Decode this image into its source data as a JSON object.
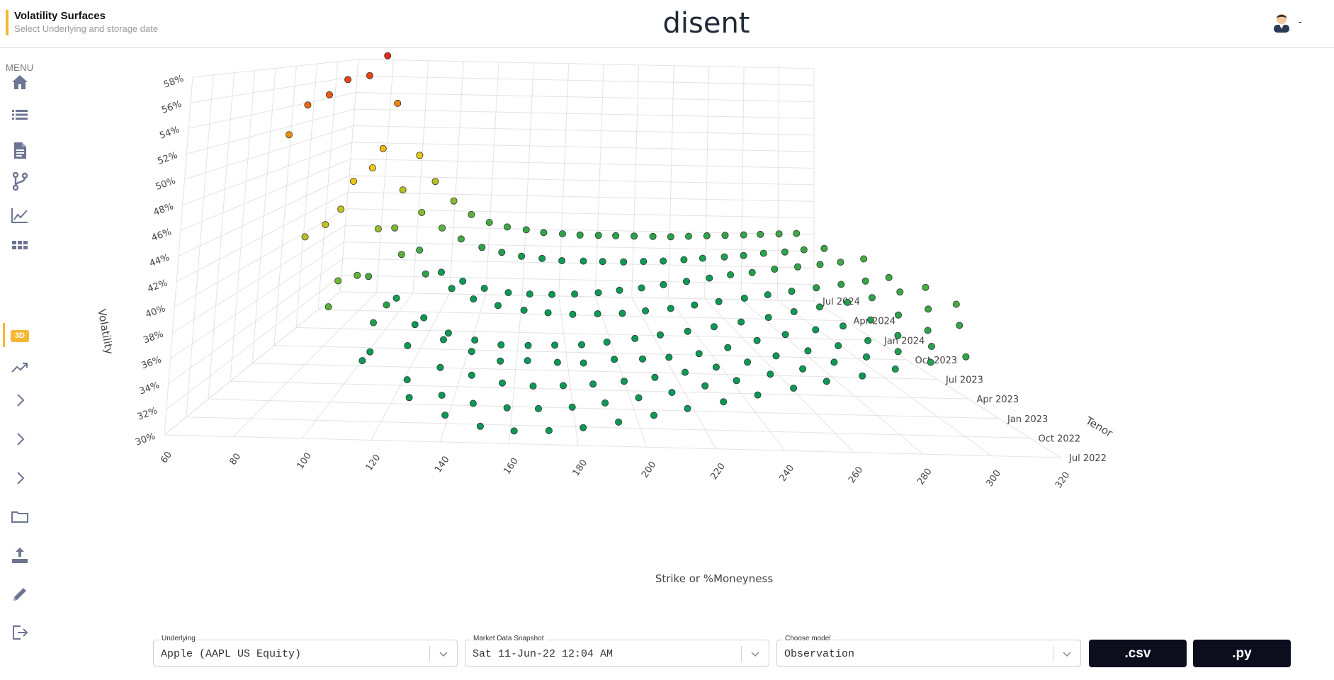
{
  "header": {
    "title": "Volatility Surfaces",
    "subtitle": "Select Underlying and storage date",
    "brand": "disent",
    "user_name": "-"
  },
  "sidebar": {
    "menu_label": "MENU",
    "items": [
      {
        "icon": "home-icon"
      },
      {
        "icon": "list-icon"
      },
      {
        "icon": "document-icon"
      },
      {
        "icon": "branch-icon"
      },
      {
        "icon": "line-chart-icon"
      },
      {
        "icon": "grid-icon"
      },
      {
        "icon": "3d-icon",
        "label": "3D",
        "active": true
      },
      {
        "icon": "trend-up-icon"
      },
      {
        "icon": "chevron-right-icon"
      },
      {
        "icon": "chevron-right-icon"
      },
      {
        "icon": "chevron-right-icon"
      },
      {
        "icon": "folder-icon"
      },
      {
        "icon": "upload-icon"
      },
      {
        "icon": "pencil-icon"
      },
      {
        "icon": "logout-icon"
      }
    ],
    "accent": "#f5b731"
  },
  "controls": {
    "underlying": {
      "label": "Underlying",
      "value": "Apple (AAPL US Equity)"
    },
    "snapshot": {
      "label": "Market Data Snapshot",
      "value": "Sat 11-Jun-22 12:04 AM"
    },
    "model": {
      "label": "Choose model",
      "value": "Observation"
    },
    "csv_label": ".csv",
    "py_label": ".py"
  },
  "chart_data": {
    "type": "scatter3d",
    "x_axis": {
      "title": "Strike or %Moneyness",
      "ticks": [
        "60",
        "80",
        "100",
        "120",
        "140",
        "160",
        "180",
        "200",
        "220",
        "240",
        "260",
        "280",
        "300",
        "320"
      ]
    },
    "y_axis": {
      "title": "Tenor",
      "ticks": [
        "Jul 2022",
        "Oct 2022",
        "Jan 2023",
        "Apr 2023",
        "Jul 2023",
        "Oct 2023",
        "Jan 2024",
        "Apr 2024",
        "Jul 2024"
      ]
    },
    "z_axis": {
      "title": "Volatility",
      "ticks": [
        "30%",
        "32%",
        "34%",
        "36%",
        "38%",
        "40%",
        "42%",
        "44%",
        "46%",
        "48%",
        "50%",
        "52%",
        "54%",
        "56%",
        "58%"
      ]
    },
    "colorscale": [
      "#0a9a55",
      "#8dbd2c",
      "#f2c712",
      "#ef8a10",
      "#e62b14"
    ],
    "points": [
      [
        73.7,
        "Jul 2023",
        54.6
      ],
      [
        89.5,
        "Jul 2023",
        44.8
      ],
      [
        101.9,
        "Jul 2023",
        38.5
      ],
      [
        113.1,
        "Jul 2023",
        36.5
      ],
      [
        124,
        "Jul 2023",
        34.7
      ],
      [
        133.7,
        "Jul 2023",
        33.3
      ],
      [
        143.9,
        "Jul 2023",
        32.7
      ],
      [
        154,
        "Jul 2023",
        32.3
      ],
      [
        164.3,
        "Jul 2023",
        32.3
      ],
      [
        174.4,
        "Jul 2023",
        32.4
      ],
      [
        184.6,
        "Jul 2023",
        32.5
      ],
      [
        194.2,
        "Jul 2023",
        32.8
      ],
      [
        204.8,
        "Jul 2023",
        33.2
      ],
      [
        214.4,
        "Jul 2023",
        33.6
      ],
      [
        224.8,
        "Jul 2023",
        34
      ],
      [
        234.8,
        "Jul 2023",
        34.5
      ],
      [
        245.1,
        "Jul 2023",
        35
      ],
      [
        255.5,
        "Jul 2023",
        35.5
      ],
      [
        265.2,
        "Jul 2023",
        36.1
      ],
      [
        275,
        "Jul 2023",
        36.6
      ],
      [
        285.6,
        "Jul 2023",
        37.1
      ],
      [
        295,
        "Jul 2023",
        37.6
      ],
      [
        305.7,
        "Jul 2023",
        38.2
      ],
      [
        315.5,
        "Jul 2023",
        38.7
      ],
      [
        74.2,
        "Apr 2023",
        52.3
      ],
      [
        89.6,
        "Apr 2023",
        44.3
      ],
      [
        102.2,
        "Apr 2023",
        39.8
      ],
      [
        113.3,
        "Apr 2023",
        37.2
      ],
      [
        123.8,
        "Apr 2023",
        35.5
      ],
      [
        134.2,
        "Apr 2023",
        34.2
      ],
      [
        144.4,
        "Apr 2023",
        33.2
      ],
      [
        154.7,
        "Apr 2023",
        32.4
      ],
      [
        164.3,
        "Apr 2023",
        32.5
      ],
      [
        174.9,
        "Apr 2023",
        32.4
      ],
      [
        184.1,
        "Apr 2023",
        32.4
      ],
      [
        194.9,
        "Apr 2023",
        32.8
      ],
      [
        204.9,
        "Apr 2023",
        32.9
      ],
      [
        214.2,
        "Apr 2023",
        33.1
      ],
      [
        224.8,
        "Apr 2023",
        33.5
      ],
      [
        234.9,
        "Apr 2023",
        34.1
      ],
      [
        245.2,
        "Apr 2023",
        34.8
      ],
      [
        255.2,
        "Apr 2023",
        35.4
      ],
      [
        265.9,
        "Apr 2023",
        35.9
      ],
      [
        275.6,
        "Apr 2023",
        36.3
      ],
      [
        285.4,
        "Apr 2023",
        36.9
      ],
      [
        295.2,
        "Apr 2023",
        37.4
      ],
      [
        305.8,
        "Apr 2023",
        38
      ],
      [
        315.8,
        "Apr 2023",
        38.5
      ],
      [
        74.9,
        "Jan 2024",
        56.4
      ],
      [
        89.2,
        "Jan 2024",
        47.1
      ],
      [
        101.2,
        "Jan 2024",
        40.8
      ],
      [
        113.1,
        "Jan 2024",
        38.5
      ],
      [
        123.6,
        "Jan 2024",
        36.2
      ],
      [
        133.5,
        "Jan 2024",
        35.3
      ],
      [
        143.4,
        "Jan 2024",
        34.6
      ],
      [
        154.3,
        "Jan 2024",
        34.2
      ],
      [
        164,
        "Jan 2024",
        34.1
      ],
      [
        174,
        "Jan 2024",
        34.1
      ],
      [
        184.2,
        "Jan 2024",
        34.2
      ],
      [
        194.9,
        "Jan 2024",
        34.4
      ],
      [
        204.4,
        "Jan 2024",
        34.7
      ],
      [
        214.3,
        "Jan 2024",
        35
      ],
      [
        224.1,
        "Jan 2024",
        35.4
      ],
      [
        234.5,
        "Jan 2024",
        35.8
      ],
      [
        244.8,
        "Jan 2024",
        36.2
      ],
      [
        254.3,
        "Jan 2024",
        36.6
      ],
      [
        264.1,
        "Jan 2024",
        36.9
      ],
      [
        274.2,
        "Jan 2024",
        37.3
      ],
      [
        284.7,
        "Jan 2024",
        37.6
      ],
      [
        294.8,
        "Jan 2024",
        37.9
      ],
      [
        304.1,
        "Jan 2024",
        38.2
      ],
      [
        314.6,
        "Jan 2024",
        38.6
      ],
      [
        76.5,
        "Jul 2024",
        58.5
      ],
      [
        84.1,
        "Jul 2024",
        52.8
      ],
      [
        98.6,
        "Jul 2024",
        46.6
      ],
      [
        108.3,
        "Jul 2024",
        43.5
      ],
      [
        119.3,
        "Jul 2024",
        41.2
      ],
      [
        129.5,
        "Jul 2024",
        39.6
      ],
      [
        139.7,
        "Jul 2024",
        38.7
      ],
      [
        149.8,
        "Jul 2024",
        38.2
      ],
      [
        160.4,
        "Jul 2024",
        37.9
      ],
      [
        170.1,
        "Jul 2024",
        37.6
      ],
      [
        180.6,
        "Jul 2024",
        37.5
      ],
      [
        190.3,
        "Jul 2024",
        37.4
      ],
      [
        200.5,
        "Jul 2024",
        37.4
      ],
      [
        210.1,
        "Jul 2024",
        37.4
      ],
      [
        220.3,
        "Jul 2024",
        37.4
      ],
      [
        230.7,
        "Jul 2024",
        37.4
      ],
      [
        240.6,
        "Jul 2024",
        37.4
      ],
      [
        250.5,
        "Jul 2024",
        37.5
      ],
      [
        260.6,
        "Jul 2024",
        37.6
      ],
      [
        270.7,
        "Jul 2024",
        37.7
      ],
      [
        281,
        "Jul 2024",
        37.8
      ],
      [
        290.2,
        "Jul 2024",
        37.9
      ],
      [
        300.6,
        "Jul 2024",
        38
      ],
      [
        310.3,
        "Jul 2024",
        38.1
      ],
      [
        76.9,
        "Apr 2024",
        56.5
      ],
      [
        86.4,
        "Apr 2024",
        48.3
      ],
      [
        97.8,
        "Apr 2024",
        43.7
      ],
      [
        108,
        "Apr 2024",
        41.2
      ],
      [
        118.7,
        "Apr 2024",
        39.5
      ],
      [
        128.5,
        "Apr 2024",
        38.3
      ],
      [
        139.1,
        "Apr 2024",
        37.4
      ],
      [
        149.1,
        "Apr 2024",
        36.9
      ],
      [
        159,
        "Apr 2024",
        36.5
      ],
      [
        169.3,
        "Apr 2024",
        36.3
      ],
      [
        179.2,
        "Apr 2024",
        36.1
      ],
      [
        189.9,
        "Apr 2024",
        36.1
      ],
      [
        199.5,
        "Apr 2024",
        36.1
      ],
      [
        209.9,
        "Apr 2024",
        36.1
      ],
      [
        219.8,
        "Apr 2024",
        36.2
      ],
      [
        229.6,
        "Apr 2024",
        36.3
      ],
      [
        239.9,
        "Apr 2024",
        36.5
      ],
      [
        249.2,
        "Apr 2024",
        36.7
      ],
      [
        260,
        "Apr 2024",
        36.9
      ],
      [
        269.5,
        "Apr 2024",
        37.1
      ],
      [
        279.5,
        "Apr 2024",
        37.4
      ],
      [
        290.1,
        "Apr 2024",
        37.6
      ],
      [
        299.6,
        "Apr 2024",
        37.9
      ],
      [
        309.7,
        "Apr 2024",
        38.1
      ],
      [
        75,
        "Oct 2023",
        55.2
      ],
      [
        87.8,
        "Oct 2023",
        46.6
      ],
      [
        99.5,
        "Oct 2023",
        41.9
      ],
      [
        109.9,
        "Oct 2023",
        39.4
      ],
      [
        120.4,
        "Oct 2023",
        37.5
      ],
      [
        131.6,
        "Oct 2023",
        36.1
      ],
      [
        140.8,
        "Oct 2023",
        35.1
      ],
      [
        151.1,
        "Oct 2023",
        34.5
      ],
      [
        161.9,
        "Oct 2023",
        34.1
      ],
      [
        171.9,
        "Oct 2023",
        33.9
      ],
      [
        182.1,
        "Oct 2023",
        33.8
      ],
      [
        192.4,
        "Oct 2023",
        33.9
      ],
      [
        202.6,
        "Oct 2023",
        34
      ],
      [
        212.1,
        "Oct 2023",
        34.3
      ],
      [
        222.5,
        "Oct 2023",
        34.6
      ],
      [
        232.3,
        "Oct 2023",
        35
      ],
      [
        242.3,
        "Oct 2023",
        35.4
      ],
      [
        252.9,
        "Oct 2023",
        35.8
      ],
      [
        262.5,
        "Oct 2023",
        36.2
      ],
      [
        272.4,
        "Oct 2023",
        36.6
      ],
      [
        282.6,
        "Oct 2023",
        37
      ],
      [
        292.9,
        "Oct 2023",
        37.4
      ],
      [
        303,
        "Oct 2023",
        37.8
      ],
      [
        312.7,
        "Oct 2023",
        38.2
      ],
      [
        88,
        "Jan 2023",
        44.1
      ],
      [
        100,
        "Jan 2023",
        40.4
      ],
      [
        112.6,
        "Jan 2023",
        36.9
      ],
      [
        124.4,
        "Jan 2023",
        35
      ],
      [
        135.6,
        "Jan 2023",
        33.2
      ],
      [
        146.1,
        "Jan 2023",
        32.6
      ],
      [
        156.3,
        "Jan 2023",
        32
      ],
      [
        166.5,
        "Jan 2023",
        31.8
      ],
      [
        176.4,
        "Jan 2023",
        31.9
      ],
      [
        186.2,
        "Jan 2023",
        32.1
      ],
      [
        196.4,
        "Jan 2023",
        32.4
      ],
      [
        206.5,
        "Jan 2023",
        32.8
      ],
      [
        216.4,
        "Jan 2023",
        33.3
      ],
      [
        226.6,
        "Jan 2023",
        33.8
      ],
      [
        236.9,
        "Jan 2023",
        34.3
      ],
      [
        246.3,
        "Jan 2023",
        34.9
      ],
      [
        256.8,
        "Jan 2023",
        35.4
      ],
      [
        266.8,
        "Jan 2023",
        35.9
      ],
      [
        276.6,
        "Jan 2023",
        36.4
      ],
      [
        286.5,
        "Jan 2023",
        36.9
      ],
      [
        296.4,
        "Jan 2023",
        37.4
      ],
      [
        306.9,
        "Jan 2023",
        37.9
      ],
      [
        101.5,
        "Oct 2022",
        39.3
      ],
      [
        115.3,
        "Oct 2022",
        35.7
      ],
      [
        127.3,
        "Oct 2022",
        33.5
      ],
      [
        138.3,
        "Oct 2022",
        32.3
      ],
      [
        148.1,
        "Oct 2022",
        31.7
      ],
      [
        158.6,
        "Oct 2022",
        31.4
      ],
      [
        168.3,
        "Oct 2022",
        31.4
      ],
      [
        178.7,
        "Oct 2022",
        31.6
      ],
      [
        188.8,
        "Oct 2022",
        32
      ],
      [
        199.1,
        "Oct 2022",
        32.5
      ],
      [
        209.3,
        "Oct 2022",
        33
      ],
      [
        219.5,
        "Oct 2022",
        33.6
      ],
      [
        229.2,
        "Oct 2022",
        34.1
      ],
      [
        239.6,
        "Oct 2022",
        34.7
      ],
      [
        249.6,
        "Oct 2022",
        35.2
      ],
      [
        259.3,
        "Oct 2022",
        35.8
      ],
      [
        269.3,
        "Oct 2022",
        36.3
      ],
      [
        279.1,
        "Oct 2022",
        36.8
      ],
      [
        289.5,
        "Oct 2022",
        37.3
      ],
      [
        116,
        "Jul 2022",
        36.2
      ],
      [
        130.3,
        "Jul 2022",
        33.4
      ],
      [
        141,
        "Jul 2022",
        32.1
      ],
      [
        151.4,
        "Jul 2022",
        31.3
      ],
      [
        161.3,
        "Jul 2022",
        31
      ],
      [
        171.4,
        "Jul 2022",
        31.1
      ],
      [
        181.3,
        "Jul 2022",
        31.4
      ],
      [
        191.5,
        "Jul 2022",
        31.9
      ],
      [
        201.7,
        "Jul 2022",
        32.5
      ],
      [
        211.4,
        "Jul 2022",
        33.1
      ],
      [
        221.8,
        "Jul 2022",
        33.7
      ],
      [
        231.7,
        "Jul 2022",
        34.3
      ],
      [
        242.1,
        "Jul 2022",
        34.9
      ],
      [
        251.7,
        "Jul 2022",
        35.5
      ],
      [
        262.1,
        "Jul 2022",
        36
      ],
      [
        271.7,
        "Jul 2022",
        36.6
      ],
      [
        282,
        "Jul 2022",
        37.2
      ],
      [
        292.3,
        "Jul 2022",
        37.7
      ]
    ]
  }
}
